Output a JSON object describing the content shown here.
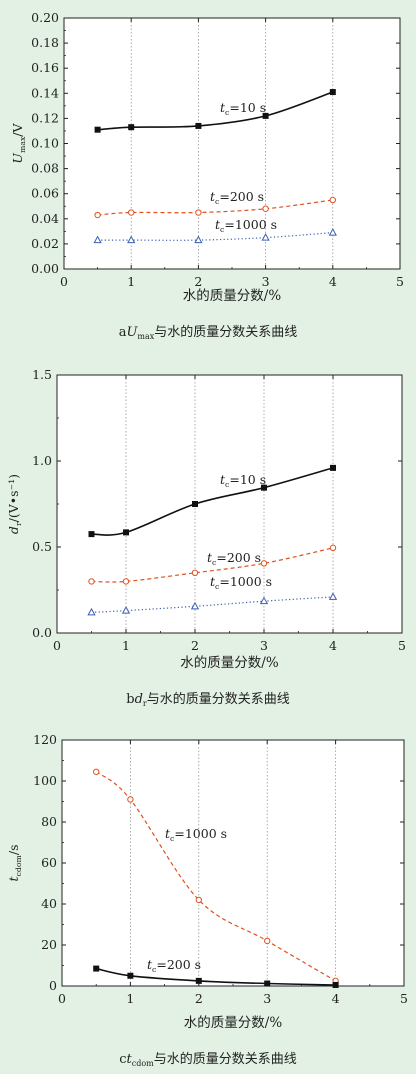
{
  "colors": {
    "background": "#e3f1e4",
    "black": "#111111",
    "orange": "#e0501e",
    "blue": "#3a5fb0",
    "grid": "#8a8a8a"
  },
  "chart_data": [
    {
      "type": "line",
      "x_ticks": [
        "0",
        "1",
        "2",
        "3",
        "4",
        "5"
      ],
      "y_ticks": [
        "0.00",
        "0.02",
        "0.04",
        "0.06",
        "0.08",
        "0.10",
        "0.12",
        "0.14",
        "0.16",
        "0.18",
        "0.20"
      ],
      "xlim": [
        0,
        5
      ],
      "ylim": [
        0,
        0.2
      ],
      "xlabel": "水的质量分数/%",
      "ylabel": {
        "main": "U",
        "sub": "max",
        "rest": "/V"
      },
      "caption": {
        "letter": "a",
        "main": "U",
        "sub": "max",
        "rest": "与水的质量分数关系曲线"
      },
      "series": [
        {
          "name": "tc=10 s",
          "label": {
            "main": "t",
            "sub": "c",
            "rest": "=10 s"
          },
          "color": "black",
          "style": "solid",
          "marker": "square-filled",
          "x": [
            0.5,
            1,
            2,
            3,
            4
          ],
          "y": [
            0.111,
            0.113,
            0.114,
            0.122,
            0.141
          ]
        },
        {
          "name": "tc=200 s",
          "label": {
            "main": "t",
            "sub": "c",
            "rest": "=200 s"
          },
          "color": "orange",
          "style": "dashed",
          "marker": "circle-open",
          "x": [
            0.5,
            1,
            2,
            3,
            4
          ],
          "y": [
            0.043,
            0.045,
            0.045,
            0.048,
            0.055
          ]
        },
        {
          "name": "tc=1000 s",
          "label": {
            "main": "t",
            "sub": "c",
            "rest": "=1000 s"
          },
          "color": "blue",
          "style": "dotted",
          "marker": "triangle-open",
          "x": [
            0.5,
            1,
            2,
            3,
            4
          ],
          "y": [
            0.023,
            0.023,
            0.023,
            0.025,
            0.029
          ]
        }
      ]
    },
    {
      "type": "line",
      "x_ticks": [
        "0",
        "1",
        "2",
        "3",
        "4",
        "5"
      ],
      "y_ticks": [
        "0.0",
        "0.5",
        "1.0",
        "1.5"
      ],
      "xlim": [
        0,
        5
      ],
      "ylim": [
        0,
        1.5
      ],
      "xlabel": "水的质量分数/%",
      "ylabel": {
        "main": "d",
        "sub": "r",
        "rest": "/(V•s⁻¹)"
      },
      "caption": {
        "letter": "b",
        "main": "d",
        "sub": "r",
        "rest": "与水的质量分数关系曲线"
      },
      "series": [
        {
          "name": "tc=10 s",
          "label": {
            "main": "t",
            "sub": "c",
            "rest": "=10 s"
          },
          "color": "black",
          "style": "solid",
          "marker": "square-filled",
          "x": [
            0.5,
            1,
            2,
            3,
            4
          ],
          "y": [
            0.575,
            0.585,
            0.75,
            0.845,
            0.96
          ]
        },
        {
          "name": "tc=200 s",
          "label": {
            "main": "t",
            "sub": "c",
            "rest": "=200 s"
          },
          "color": "orange",
          "style": "dashed",
          "marker": "circle-open",
          "x": [
            0.5,
            1,
            2,
            3,
            4
          ],
          "y": [
            0.3,
            0.3,
            0.35,
            0.405,
            0.495
          ]
        },
        {
          "name": "tc=1000 s",
          "label": {
            "main": "t",
            "sub": "c",
            "rest": "=1000 s"
          },
          "color": "blue",
          "style": "dotted",
          "marker": "triangle-open",
          "x": [
            0.5,
            1,
            2,
            3,
            4
          ],
          "y": [
            0.12,
            0.13,
            0.155,
            0.185,
            0.21
          ]
        }
      ]
    },
    {
      "type": "line",
      "x_ticks": [
        "0",
        "1",
        "2",
        "3",
        "4",
        "5"
      ],
      "y_ticks": [
        "0",
        "20",
        "40",
        "60",
        "80",
        "100",
        "120"
      ],
      "xlim": [
        0,
        5
      ],
      "ylim": [
        0,
        120
      ],
      "xlabel": "水的质量分数/%",
      "ylabel": {
        "main": "t",
        "sub": "cdom",
        "rest": "/s"
      },
      "caption": {
        "letter": "c",
        "main": "t",
        "sub": "cdom",
        "rest": "与水的质量分数关系曲线"
      },
      "series": [
        {
          "name": "tc=1000 s",
          "label": {
            "main": "t",
            "sub": "c",
            "rest": "=1000 s"
          },
          "color": "orange",
          "style": "dashed",
          "marker": "circle-open",
          "x": [
            0.5,
            1,
            2,
            3,
            4
          ],
          "y": [
            104.5,
            91,
            42,
            22,
            2.5
          ]
        },
        {
          "name": "tc=200 s",
          "label": {
            "main": "t",
            "sub": "c",
            "rest": "=200 s"
          },
          "color": "black",
          "style": "solid",
          "marker": "square-filled",
          "x": [
            0.5,
            1,
            2,
            3,
            4
          ],
          "y": [
            8.5,
            5,
            2.5,
            1.2,
            0.5
          ]
        }
      ]
    }
  ]
}
